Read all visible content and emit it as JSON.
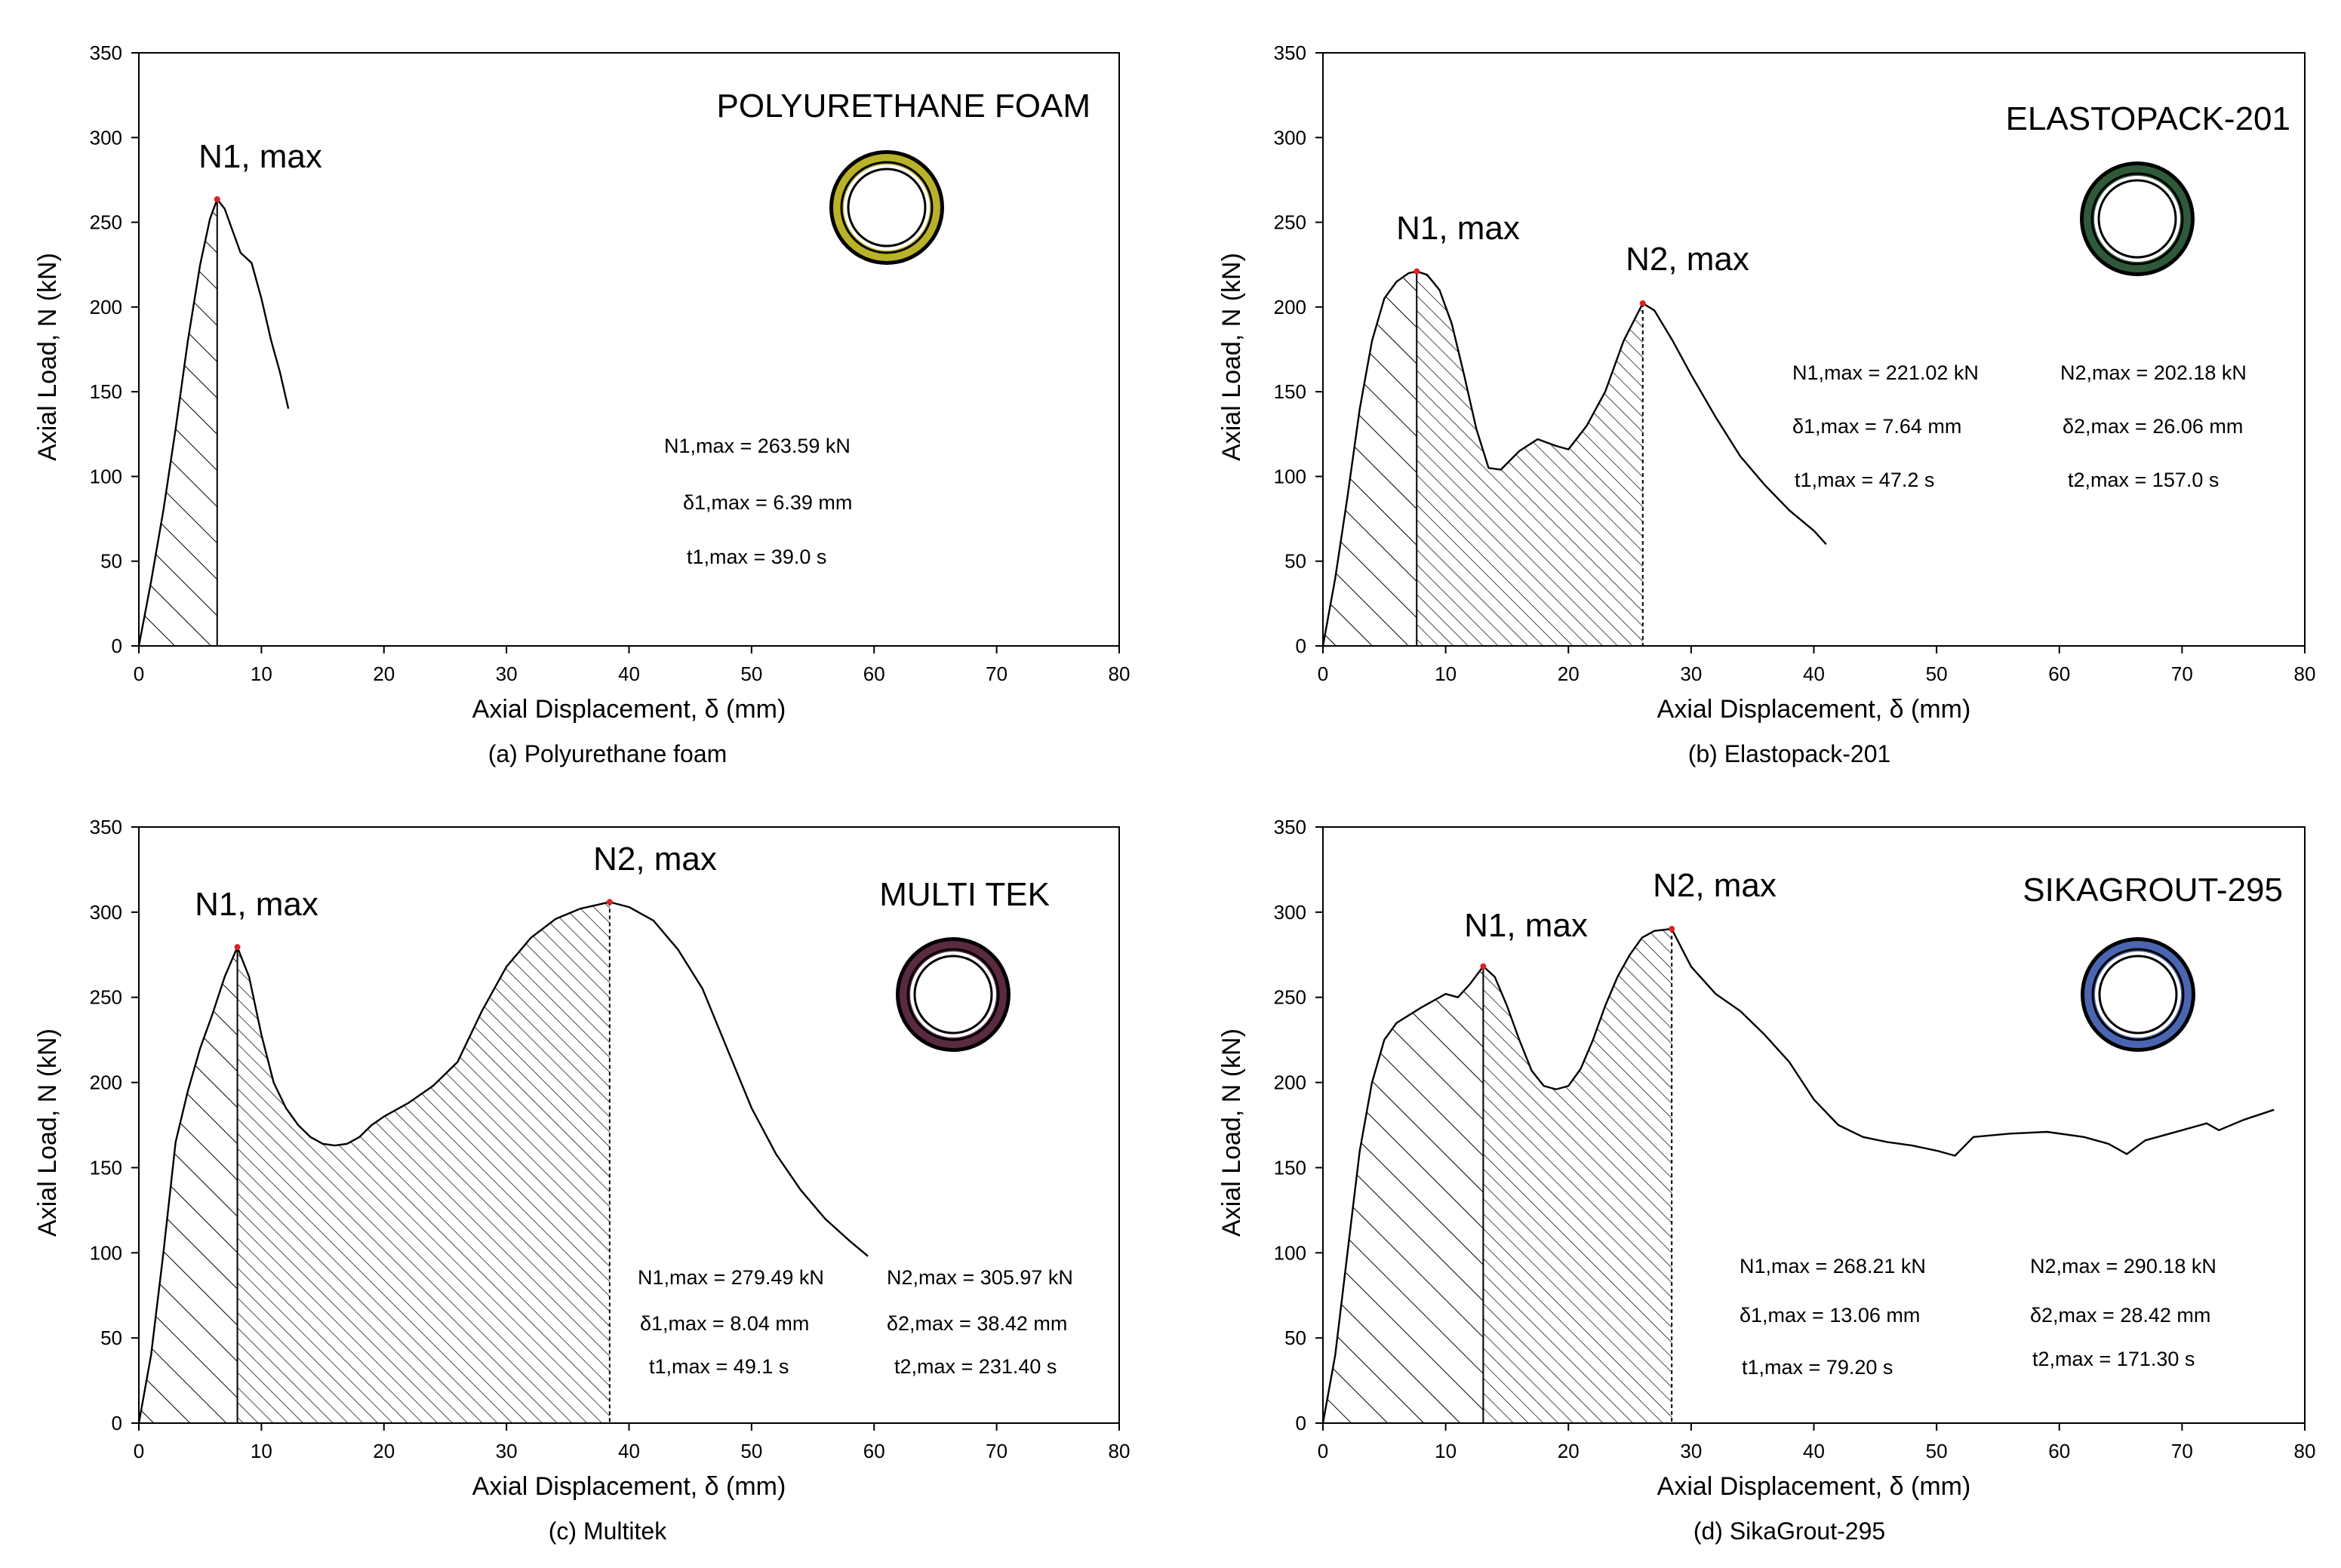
{
  "panel_captions": [
    "(a) Polyurethane foam",
    "(b) Elastopack-201",
    "(c) Multitek",
    "(d) SikaGrout-295"
  ],
  "ring_colors": [
    "#b9b228",
    "#2f5a3a",
    "#5a2a40",
    "#4a66b2"
  ],
  "chart_data": [
    {
      "type": "line",
      "caption": "(a) Polyurethane foam",
      "title": "POLYURETHANE FOAM",
      "xlabel": "Axial Displacement, δ (mm)",
      "ylabel": "Axial Load, N (kN)",
      "xlim": [
        0,
        80
      ],
      "ylim": [
        0,
        350
      ],
      "xticks": [
        0,
        10,
        20,
        30,
        40,
        50,
        60,
        70,
        80
      ],
      "yticks": [
        0,
        50,
        100,
        150,
        200,
        250,
        300,
        350
      ],
      "series": [
        {
          "name": "Polyurethane foam",
          "x": [
            0,
            1,
            2,
            3,
            4,
            5,
            5.8,
            6.39,
            7,
            7.6,
            8.3,
            9.2,
            10,
            10.8,
            11.5,
            12.2
          ],
          "y": [
            0,
            38,
            80,
            128,
            180,
            225,
            252,
            263.59,
            258,
            246,
            232,
            226,
            205,
            180,
            162,
            140
          ]
        }
      ],
      "peaks": [
        {
          "label": "N1, max",
          "x": 6.39,
          "y": 263.59
        }
      ],
      "hatched_regions": [
        {
          "from": 0,
          "to": 6.39,
          "hatch": "wide"
        }
      ],
      "annotations": [
        "N1,max = 263.59 kN",
        "δ1,max = 6.39  mm",
        "t1,max = 39.0 s"
      ]
    },
    {
      "type": "line",
      "caption": "(b) Elastopack-201",
      "title": "ELASTOPACK-201",
      "xlabel": "Axial Displacement, δ (mm)",
      "ylabel": "Axial Load, N (kN)",
      "xlim": [
        0,
        80
      ],
      "ylim": [
        0,
        350
      ],
      "xticks": [
        0,
        10,
        20,
        30,
        40,
        50,
        60,
        70,
        80
      ],
      "yticks": [
        0,
        50,
        100,
        150,
        200,
        250,
        300,
        350
      ],
      "series": [
        {
          "name": "Elastopack-201",
          "x": [
            0,
            1,
            2,
            3,
            4,
            5,
            6,
            7,
            7.64,
            8.5,
            9.5,
            10.5,
            11.5,
            12.5,
            13.5,
            14.5,
            16,
            17.5,
            19,
            20,
            21.5,
            23,
            24.5,
            26.06,
            27,
            28.5,
            30,
            32,
            34,
            36,
            38,
            40,
            41
          ],
          "y": [
            0,
            40,
            88,
            140,
            180,
            205,
            215,
            220,
            221.02,
            219,
            210,
            190,
            160,
            128,
            105,
            104,
            115,
            122,
            118,
            116,
            130,
            150,
            180,
            202.18,
            198,
            180,
            160,
            135,
            112,
            95,
            80,
            68,
            60
          ]
        }
      ],
      "peaks": [
        {
          "label": "N1, max",
          "x": 7.64,
          "y": 221.02
        },
        {
          "label": "N2, max",
          "x": 26.06,
          "y": 202.18
        }
      ],
      "hatched_regions": [
        {
          "from": 0,
          "to": 7.64,
          "hatch": "wide"
        },
        {
          "from": 7.64,
          "to": 26.06,
          "hatch": "dense"
        }
      ],
      "annotations": [
        "N1,max = 221.02 kN",
        "δ1,max = 7.64  mm",
        "t1,max = 47.2 s",
        "N2,max = 202.18 kN",
        "δ2,max = 26.06 mm",
        "t2,max = 157.0 s"
      ]
    },
    {
      "type": "line",
      "caption": "(c) Multitek",
      "title": "MULTI TEK",
      "xlabel": "Axial Displacement, δ (mm)",
      "ylabel": "Axial Load, N (kN)",
      "xlim": [
        0,
        80
      ],
      "ylim": [
        0,
        350
      ],
      "xticks": [
        0,
        10,
        20,
        30,
        40,
        50,
        60,
        70,
        80
      ],
      "yticks": [
        0,
        50,
        100,
        150,
        200,
        250,
        300,
        350
      ],
      "series": [
        {
          "name": "Multitek",
          "x": [
            0,
            1,
            2,
            3,
            4,
            5,
            6,
            7,
            8.04,
            9,
            10,
            11,
            12,
            13,
            14,
            15,
            16,
            17,
            18,
            19,
            20,
            22,
            24,
            26,
            28,
            30,
            32,
            34,
            36,
            38.42,
            40,
            42,
            44,
            46,
            48,
            50,
            52,
            54,
            56,
            58,
            59.5
          ],
          "y": [
            0,
            40,
            100,
            165,
            195,
            220,
            240,
            262,
            279.49,
            262,
            228,
            200,
            185,
            175,
            168,
            164,
            163,
            164,
            168,
            175,
            180,
            188,
            198,
            212,
            242,
            268,
            285,
            296,
            302,
            305.97,
            303,
            295,
            278,
            255,
            220,
            185,
            158,
            137,
            120,
            107,
            98
          ]
        }
      ],
      "peaks": [
        {
          "label": "N1, max",
          "x": 8.04,
          "y": 279.49
        },
        {
          "label": "N2, max",
          "x": 38.42,
          "y": 305.97
        }
      ],
      "hatched_regions": [
        {
          "from": 0,
          "to": 8.04,
          "hatch": "wide"
        },
        {
          "from": 8.04,
          "to": 38.42,
          "hatch": "dense"
        }
      ],
      "annotations": [
        "N1,max = 279.49 kN",
        "δ1,max = 8.04  mm",
        "t1,max = 49.1 s",
        "N2,max = 305.97 kN",
        "δ2,max = 38.42 mm",
        "t2,max = 231.40 s"
      ]
    },
    {
      "type": "line",
      "caption": "(d) SikaGrout-295",
      "title": "SIKAGROUT-295",
      "xlabel": "Axial Displacement, δ (mm)",
      "ylabel": "Axial Load, N (kN)",
      "xlim": [
        0,
        80
      ],
      "ylim": [
        0,
        350
      ],
      "xticks": [
        0,
        10,
        20,
        30,
        40,
        50,
        60,
        70,
        80
      ],
      "yticks": [
        0,
        50,
        100,
        150,
        200,
        250,
        300,
        350
      ],
      "series": [
        {
          "name": "SikaGrout-295",
          "x": [
            0,
            1,
            2,
            3,
            4,
            5,
            6,
            8,
            10,
            11,
            12,
            13.06,
            14,
            15,
            16,
            17,
            18,
            19,
            20,
            21,
            22,
            23,
            24,
            25,
            26,
            27,
            28.42,
            29,
            30,
            32,
            34,
            36,
            38,
            40,
            42,
            44,
            46,
            48,
            50,
            51.5,
            53,
            56,
            59,
            62,
            64,
            65.5,
            67,
            70,
            72,
            73,
            75,
            77.5
          ],
          "y": [
            0,
            40,
            100,
            160,
            200,
            225,
            235,
            244,
            252,
            250,
            258,
            268.21,
            262,
            245,
            225,
            207,
            198,
            196,
            198,
            208,
            225,
            245,
            262,
            275,
            285,
            289,
            290.18,
            282,
            268,
            252,
            242,
            228,
            212,
            190,
            175,
            168,
            165,
            163,
            160,
            157,
            168,
            170,
            171,
            168,
            164,
            158,
            166,
            172,
            176,
            172,
            178,
            184
          ]
        }
      ],
      "peaks": [
        {
          "label": "N1, max",
          "x": 13.06,
          "y": 268.21
        },
        {
          "label": "N2, max",
          "x": 28.42,
          "y": 290.18
        }
      ],
      "hatched_regions": [
        {
          "from": 0,
          "to": 13.06,
          "hatch": "wide"
        },
        {
          "from": 13.06,
          "to": 28.42,
          "hatch": "dense"
        }
      ],
      "annotations": [
        "N1,max = 268.21 kN",
        "δ1,max = 13.06  mm",
        "t1,max = 79.20 s",
        "N2,max = 290.18 kN",
        "δ2,max = 28.42 mm",
        "t2,max = 171.30 s"
      ]
    }
  ]
}
